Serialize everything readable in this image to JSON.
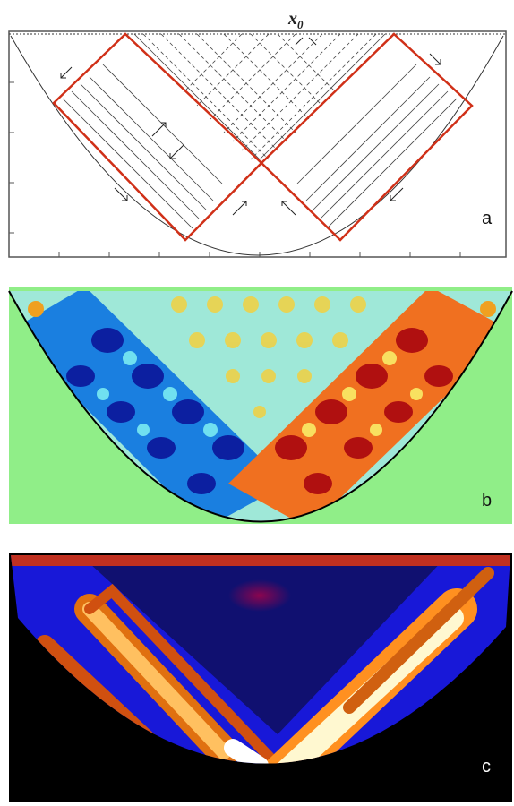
{
  "panels": [
    {
      "label": "a",
      "annotation": {
        "symbol": "x",
        "subscript": "0"
      }
    },
    {
      "label": "b"
    },
    {
      "label": "c"
    }
  ]
}
